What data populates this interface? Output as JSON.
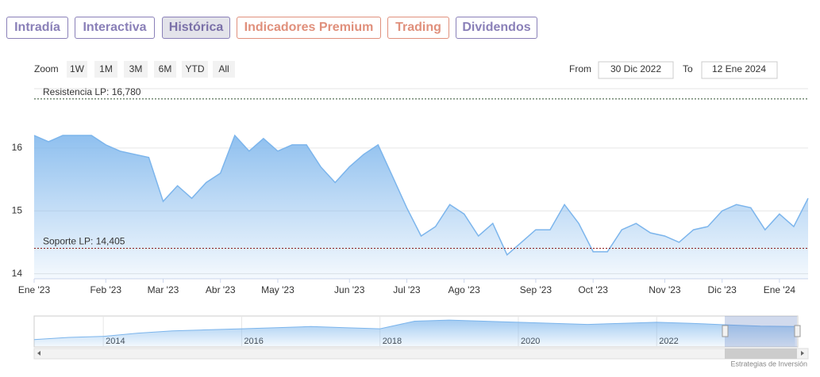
{
  "tabs": [
    "Intradía",
    "Interactiva",
    "Histórica",
    "Indicadores Premium",
    "Trading",
    "Dividendos"
  ],
  "zoom": {
    "label": "Zoom",
    "buttons": [
      "1W",
      "1M",
      "3M",
      "6M",
      "YTD",
      "All"
    ]
  },
  "range": {
    "from_label": "From",
    "from": "30 Dic 2022",
    "to_label": "To",
    "to": "12 Ene 2024"
  },
  "chart_data": {
    "type": "area",
    "color": "#7cb5ec",
    "categories": [
      "Ene '23",
      null,
      null,
      null,
      null,
      "Feb '23",
      null,
      null,
      null,
      "Mar '23",
      null,
      null,
      null,
      "Abr '23",
      null,
      null,
      null,
      "May '23",
      null,
      null,
      null,
      null,
      "Jun '23",
      null,
      null,
      null,
      "Jul '23",
      null,
      null,
      null,
      "Ago '23",
      null,
      null,
      null,
      null,
      "Sep '23",
      null,
      null,
      null,
      "Oct '23",
      null,
      null,
      null,
      null,
      "Nov '23",
      null,
      null,
      null,
      "Dic '23",
      null,
      null,
      null,
      "Ene '24",
      null,
      null
    ],
    "values": [
      16.2,
      16.1,
      16.2,
      16.2,
      16.2,
      16.05,
      15.95,
      15.9,
      15.85,
      15.15,
      15.4,
      15.2,
      15.45,
      15.6,
      16.2,
      15.95,
      16.15,
      15.95,
      16.05,
      16.05,
      15.7,
      15.45,
      15.7,
      15.9,
      16.05,
      15.55,
      15.05,
      14.6,
      14.75,
      15.1,
      14.95,
      14.6,
      14.8,
      14.3,
      14.5,
      14.7,
      14.7,
      15.1,
      14.8,
      14.35,
      14.35,
      14.7,
      14.8,
      14.65,
      14.6,
      14.5,
      14.7,
      14.75,
      15.0,
      15.1,
      15.05,
      14.7,
      14.95,
      14.75,
      15.2
    ],
    "ylim": [
      13.92,
      16.93
    ],
    "yticks": [
      14,
      15,
      16
    ],
    "grid": true,
    "lines": [
      {
        "label": "Resistencia LP: 16,780",
        "value": 16.78,
        "color": "#2f4f2f"
      },
      {
        "label": "Soporte LP: 14,405",
        "value": 14.405,
        "color": "#8b1a1a"
      }
    ]
  },
  "navigator": {
    "x": [
      2013.0,
      2013.5,
      2014.0,
      2014.5,
      2015.0,
      2015.5,
      2016.0,
      2016.5,
      2017.0,
      2017.5,
      2018.0,
      2018.5,
      2019.0,
      2019.5,
      2020.0,
      2020.5,
      2021.0,
      2021.5,
      2022.0,
      2022.5,
      2023.0,
      2023.5,
      2024.0
    ],
    "values": [
      9,
      10,
      10.5,
      12,
      13,
      13.5,
      14,
      14.5,
      15,
      14.5,
      14,
      17.5,
      18,
      17.5,
      17,
      16.5,
      16,
      16.5,
      17,
      16.5,
      15.8,
      15.2,
      15
    ],
    "xlim": [
      2013.0,
      2024.04
    ],
    "ylim": [
      6,
      19.5
    ],
    "xticks": [
      2014,
      2016,
      2018,
      2020,
      2022
    ]
  },
  "credit": "Estrategias de Inversión"
}
